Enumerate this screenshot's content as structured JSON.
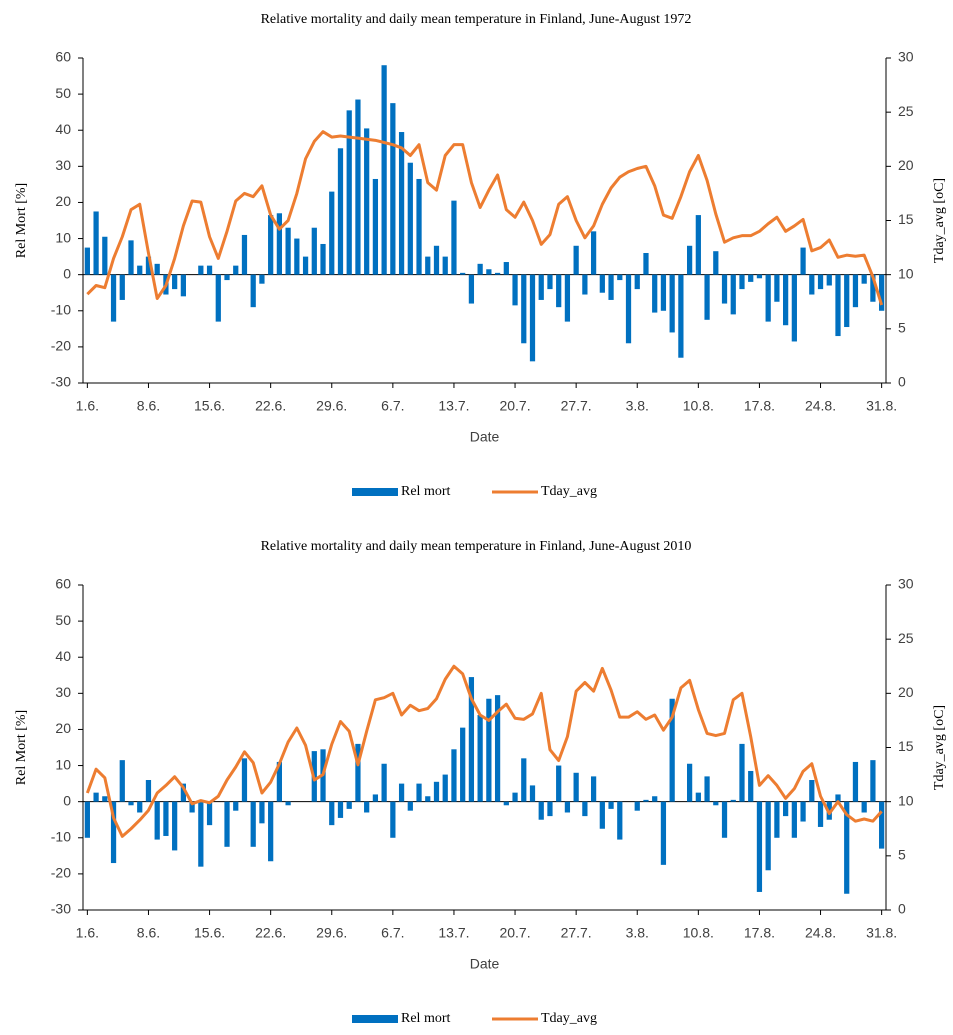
{
  "chart_data": [
    {
      "type": "combo",
      "title": "Relative mortality and daily mean temperature in Finland, June-August 1972",
      "xlabel": "Date",
      "ylabel": "Rel Mort [%]",
      "y2label": "Tday_avg [oC]",
      "categories": [
        "1.6.",
        null,
        null,
        null,
        null,
        null,
        null,
        "8.6.",
        null,
        null,
        null,
        null,
        null,
        null,
        "15.6.",
        null,
        null,
        null,
        null,
        null,
        null,
        "22.6.",
        null,
        null,
        null,
        null,
        null,
        null,
        "29.6.",
        null,
        null,
        null,
        null,
        null,
        null,
        "6.7.",
        null,
        null,
        null,
        null,
        null,
        null,
        "13.7.",
        null,
        null,
        null,
        null,
        null,
        null,
        "20.7.",
        null,
        null,
        null,
        null,
        null,
        null,
        "27.7.",
        null,
        null,
        null,
        null,
        null,
        null,
        "3.8.",
        null,
        null,
        null,
        null,
        null,
        null,
        "10.8.",
        null,
        null,
        null,
        null,
        null,
        null,
        "17.8.",
        null,
        null,
        null,
        null,
        null,
        null,
        "24.8.",
        null,
        null,
        null,
        null,
        null,
        null,
        "31.8."
      ],
      "ylim": [
        -30,
        60
      ],
      "yticks": [
        -30,
        -20,
        -10,
        0,
        10,
        20,
        30,
        40,
        50,
        60
      ],
      "y2lim": [
        0,
        30
      ],
      "y2ticks": [
        0,
        5,
        10,
        15,
        20,
        25,
        30
      ],
      "series": [
        {
          "name": "Rel mort",
          "type": "bar",
          "color": "#0070c0",
          "values": [
            7.5,
            17.5,
            10.5,
            -13,
            -7,
            9.5,
            2.5,
            5,
            3,
            -5.5,
            -4,
            -6,
            0,
            2.5,
            2.5,
            -13,
            -1.5,
            2.5,
            11,
            -9,
            -2.5,
            16.5,
            17,
            13,
            10,
            5,
            13,
            8.5,
            23,
            35,
            45.5,
            48.5,
            40.5,
            26.5,
            58,
            47.5,
            39.5,
            31,
            26.5,
            5,
            8,
            5,
            20.5,
            0.5,
            -8,
            3,
            1.5,
            0.5,
            3.5,
            -8.5,
            -19,
            -24,
            -7,
            -4,
            -9,
            -13,
            8,
            -5.5,
            12,
            -5,
            -7,
            -1.5,
            -19,
            -4,
            6,
            -10.5,
            -10,
            -16,
            -23,
            8,
            16.5,
            -12.5,
            6.5,
            -8,
            -11,
            -4,
            -2,
            -1,
            -13,
            -7.5,
            -14,
            -18.5,
            7.5,
            -5.5,
            -4,
            -3,
            -17,
            -14.5,
            -9,
            -2.5,
            -7.5,
            -10
          ]
        },
        {
          "name": "Tday_avg",
          "type": "line",
          "axis": "y2",
          "color": "#ed7d31",
          "values": [
            8.2,
            9,
            8.8,
            11.5,
            13.5,
            16,
            16.5,
            12,
            7.8,
            9,
            11.5,
            14.5,
            16.8,
            16.7,
            13.5,
            11.5,
            14,
            16.8,
            17.5,
            17.2,
            18.2,
            15.5,
            14.2,
            15,
            17.5,
            20.7,
            22.3,
            23.2,
            22.7,
            22.8,
            22.7,
            22.6,
            22.5,
            22.4,
            22.2,
            22,
            21.7,
            21,
            22,
            18.5,
            17.8,
            21,
            22,
            22,
            18.5,
            16.2,
            17.8,
            19.2,
            16,
            15.3,
            16.7,
            15,
            12.8,
            13.7,
            16.5,
            17.2,
            15,
            13.4,
            14.5,
            16.5,
            18,
            19,
            19.5,
            19.8,
            20,
            18.2,
            15.5,
            15.2,
            17.2,
            19.5,
            21,
            18.7,
            15.6,
            13,
            13.4,
            13.6,
            13.6,
            14,
            14.7,
            15.3,
            14,
            14.5,
            15.1,
            12.2,
            12.5,
            13.2,
            11.6,
            11.8,
            11.7,
            11.8,
            9.8,
            7.2
          ]
        }
      ]
    },
    {
      "type": "combo",
      "title": "Relative mortality and daily mean temperature in Finland, June-August 2010",
      "xlabel": "Date",
      "ylabel": "Rel Mort [%]",
      "y2label": "Tday_avg [oC]",
      "categories": [
        "1.6.",
        null,
        null,
        null,
        null,
        null,
        null,
        "8.6.",
        null,
        null,
        null,
        null,
        null,
        null,
        "15.6.",
        null,
        null,
        null,
        null,
        null,
        null,
        "22.6.",
        null,
        null,
        null,
        null,
        null,
        null,
        "29.6.",
        null,
        null,
        null,
        null,
        null,
        null,
        "6.7.",
        null,
        null,
        null,
        null,
        null,
        null,
        "13.7.",
        null,
        null,
        null,
        null,
        null,
        null,
        "20.7.",
        null,
        null,
        null,
        null,
        null,
        null,
        "27.7.",
        null,
        null,
        null,
        null,
        null,
        null,
        "3.8.",
        null,
        null,
        null,
        null,
        null,
        null,
        "10.8.",
        null,
        null,
        null,
        null,
        null,
        null,
        "17.8.",
        null,
        null,
        null,
        null,
        null,
        null,
        "24.8.",
        null,
        null,
        null,
        null,
        null,
        null,
        "31.8."
      ],
      "ylim": [
        -30,
        60
      ],
      "yticks": [
        -30,
        -20,
        -10,
        0,
        10,
        20,
        30,
        40,
        50,
        60
      ],
      "y2lim": [
        0,
        30
      ],
      "y2ticks": [
        0,
        5,
        10,
        15,
        20,
        25,
        30
      ],
      "series": [
        {
          "name": "Rel mort",
          "type": "bar",
          "color": "#0070c0",
          "values": [
            -10,
            2.5,
            1.5,
            -17,
            11.5,
            -1,
            -3,
            6,
            -10.5,
            -9.5,
            -13.5,
            5,
            -3,
            -18,
            -6.5,
            0,
            -12.5,
            -2.5,
            12,
            -12.5,
            -6,
            -16.5,
            11,
            -1,
            0,
            0,
            14,
            14.5,
            -6.5,
            -4.5,
            -2,
            16,
            -3,
            2,
            10.5,
            -10,
            5,
            -2.5,
            5,
            1.5,
            5.5,
            7.5,
            14.5,
            20.5,
            34.5,
            24,
            28.5,
            29.5,
            -1,
            2.5,
            12,
            4.5,
            -5,
            -4,
            10,
            -3,
            8,
            -4,
            7,
            -7.5,
            -2,
            -10.5,
            0,
            -2.5,
            0.5,
            1.5,
            -17.5,
            28.5,
            0,
            10.5,
            2.5,
            7,
            -1,
            -10,
            0.5,
            16,
            8.5,
            -25,
            -19,
            -10,
            -4,
            -10,
            -5.5,
            6,
            -7,
            -5,
            2,
            -25.5,
            11,
            -3,
            11.5,
            -13
          ]
        },
        {
          "name": "Tday_avg",
          "type": "line",
          "axis": "y2",
          "color": "#ed7d31",
          "values": [
            10.8,
            13,
            12.2,
            8.5,
            6.8,
            7.5,
            8.3,
            9.2,
            10.8,
            11.5,
            12.3,
            11.3,
            9.8,
            10.1,
            9.9,
            10.5,
            12,
            13.2,
            14.6,
            13.6,
            10.8,
            11.8,
            13.5,
            15.5,
            16.8,
            15.2,
            12,
            12.5,
            15.3,
            17.4,
            16.5,
            13.4,
            16.5,
            19.4,
            19.6,
            20,
            18,
            18.9,
            18.4,
            18.6,
            19.5,
            21.3,
            22.5,
            21.8,
            19.5,
            18,
            17.5,
            18.3,
            19,
            17.7,
            17.6,
            18.1,
            20,
            14.8,
            13.8,
            16,
            20.2,
            21,
            20.2,
            22.3,
            20.3,
            17.8,
            17.8,
            18.3,
            17.6,
            18,
            16.6,
            17.8,
            20.5,
            21.2,
            18.5,
            16.3,
            16.1,
            16.3,
            19.4,
            20,
            16,
            11.5,
            12.4,
            11.5,
            10.3,
            11.2,
            12.8,
            13.5,
            10.5,
            8.9,
            10,
            8.8,
            8.2,
            8.4,
            8.2,
            9.1
          ]
        }
      ]
    }
  ]
}
